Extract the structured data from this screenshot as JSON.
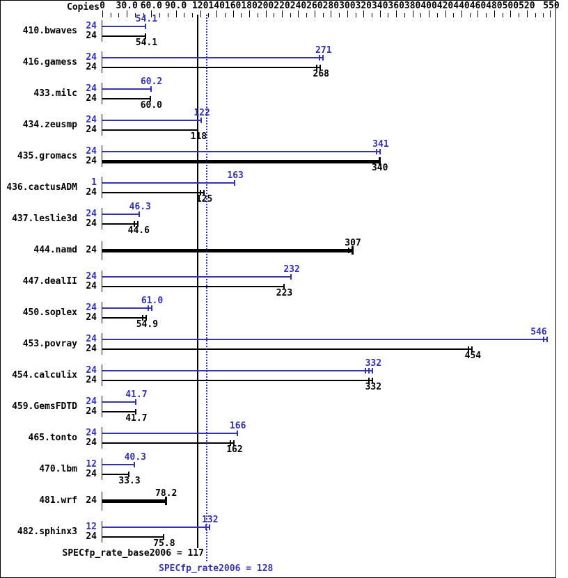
{
  "header": {
    "copies_label": "Copies"
  },
  "colors": {
    "peak": "#3232b2",
    "base": "#000000",
    "background": "#ffffff"
  },
  "chart_data": {
    "type": "bar",
    "orientation": "horizontal",
    "xlim": [
      0,
      550
    ],
    "grid": false,
    "axis_ticks": [
      {
        "value": 0,
        "text": "0"
      },
      {
        "value": 30,
        "text": "30.0"
      },
      {
        "value": 60,
        "text": "60.0"
      },
      {
        "value": 90,
        "text": "90.0"
      },
      {
        "value": 120,
        "text": "120"
      },
      {
        "value": 140,
        "text": "140"
      },
      {
        "value": 160,
        "text": "160"
      },
      {
        "value": 180,
        "text": "180"
      },
      {
        "value": 200,
        "text": "200"
      },
      {
        "value": 220,
        "text": "220"
      },
      {
        "value": 240,
        "text": "240"
      },
      {
        "value": 260,
        "text": "260"
      },
      {
        "value": 280,
        "text": "280"
      },
      {
        "value": 300,
        "text": "300"
      },
      {
        "value": 320,
        "text": "320"
      },
      {
        "value": 340,
        "text": "340"
      },
      {
        "value": 360,
        "text": "360"
      },
      {
        "value": 380,
        "text": "380"
      },
      {
        "value": 400,
        "text": "400"
      },
      {
        "value": 420,
        "text": "420"
      },
      {
        "value": 440,
        "text": "440"
      },
      {
        "value": 460,
        "text": "460"
      },
      {
        "value": 480,
        "text": "480"
      },
      {
        "value": 500,
        "text": "500"
      },
      {
        "value": 520,
        "text": "520"
      },
      {
        "value": 550,
        "text": "550"
      }
    ],
    "minor_tick_step": 10,
    "reference_lines": [
      {
        "name": "base-mean",
        "value": 117,
        "style": "solid",
        "color": "#000000",
        "label": "SPECfp_rate_base2006 = 117"
      },
      {
        "name": "peak-mean",
        "value": 128,
        "style": "dotted",
        "color": "#3232b2",
        "label": "SPECfp_rate2006 = 128"
      }
    ],
    "benchmarks": [
      {
        "name": "410.bwaves",
        "bars": [
          {
            "series": "peak",
            "copies": "24",
            "value": 54.1,
            "label": "54.1",
            "marks": 1
          },
          {
            "series": "base",
            "copies": "24",
            "value": 54.1,
            "label": "54.1",
            "marks": 1
          }
        ]
      },
      {
        "name": "416.gamess",
        "bars": [
          {
            "series": "peak",
            "copies": "24",
            "value": 271,
            "label": "271",
            "marks": 2
          },
          {
            "series": "base",
            "copies": "24",
            "value": 268,
            "label": "268",
            "marks": 2
          }
        ]
      },
      {
        "name": "433.milc",
        "bars": [
          {
            "series": "peak",
            "copies": "24",
            "value": 60.2,
            "label": "60.2",
            "marks": 1
          },
          {
            "series": "base",
            "copies": "24",
            "value": 60.0,
            "label": "60.0",
            "marks": 1
          }
        ]
      },
      {
        "name": "434.zeusmp",
        "bars": [
          {
            "series": "peak",
            "copies": "24",
            "value": 122,
            "label": "122",
            "marks": 1
          },
          {
            "series": "base",
            "copies": "24",
            "value": 118,
            "label": "118",
            "marks": 1
          }
        ]
      },
      {
        "name": "435.gromacs",
        "bars": [
          {
            "series": "peak",
            "copies": "24",
            "value": 341,
            "label": "341",
            "marks": 2
          },
          {
            "series": "base",
            "copies": "24",
            "value": 340,
            "label": "340",
            "marks": 1,
            "thick": true
          }
        ]
      },
      {
        "name": "436.cactusADM",
        "bars": [
          {
            "series": "peak",
            "copies": "1",
            "value": 163,
            "label": "163",
            "marks": 1
          },
          {
            "series": "base",
            "copies": "24",
            "value": 125,
            "label": "125",
            "marks": 2
          }
        ]
      },
      {
        "name": "437.leslie3d",
        "bars": [
          {
            "series": "peak",
            "copies": "24",
            "value": 46.3,
            "label": "46.3",
            "marks": 1
          },
          {
            "series": "base",
            "copies": "24",
            "value": 44.6,
            "label": "44.6",
            "marks": 2
          }
        ]
      },
      {
        "name": "444.namd",
        "bars": [
          {
            "series": "base",
            "copies": "24",
            "value": 307,
            "label": "307",
            "marks": 2,
            "thick": true
          }
        ]
      },
      {
        "name": "447.dealII",
        "bars": [
          {
            "series": "peak",
            "copies": "24",
            "value": 232,
            "label": "232",
            "marks": 1
          },
          {
            "series": "base",
            "copies": "24",
            "value": 223,
            "label": "223",
            "marks": 1
          }
        ]
      },
      {
        "name": "450.soplex",
        "bars": [
          {
            "series": "peak",
            "copies": "24",
            "value": 61.0,
            "label": "61.0",
            "marks": 2
          },
          {
            "series": "base",
            "copies": "24",
            "value": 54.9,
            "label": "54.9",
            "marks": 2
          }
        ]
      },
      {
        "name": "453.povray",
        "bars": [
          {
            "series": "peak",
            "copies": "24",
            "value": 546,
            "label": "546",
            "marks": 2
          },
          {
            "series": "base",
            "copies": "24",
            "value": 454,
            "label": "454",
            "marks": 2
          }
        ]
      },
      {
        "name": "454.calculix",
        "bars": [
          {
            "series": "peak",
            "copies": "24",
            "value": 332,
            "label": "332",
            "marks": 3
          },
          {
            "series": "base",
            "copies": "24",
            "value": 332,
            "label": "332",
            "marks": 2
          }
        ]
      },
      {
        "name": "459.GemsFDTD",
        "bars": [
          {
            "series": "peak",
            "copies": "24",
            "value": 41.7,
            "label": "41.7",
            "marks": 1
          },
          {
            "series": "base",
            "copies": "24",
            "value": 41.7,
            "label": "41.7",
            "marks": 1
          }
        ]
      },
      {
        "name": "465.tonto",
        "bars": [
          {
            "series": "peak",
            "copies": "24",
            "value": 166,
            "label": "166",
            "marks": 1
          },
          {
            "series": "base",
            "copies": "24",
            "value": 162,
            "label": "162",
            "marks": 2
          }
        ]
      },
      {
        "name": "470.lbm",
        "bars": [
          {
            "series": "peak",
            "copies": "12",
            "value": 40.3,
            "label": "40.3",
            "marks": 1
          },
          {
            "series": "base",
            "copies": "24",
            "value": 33.3,
            "label": "33.3",
            "marks": 1
          }
        ]
      },
      {
        "name": "481.wrf",
        "bars": [
          {
            "series": "base",
            "copies": "24",
            "value": 78.2,
            "label": "78.2",
            "marks": 1,
            "thick": true
          }
        ]
      },
      {
        "name": "482.sphinx3",
        "bars": [
          {
            "series": "peak",
            "copies": "12",
            "value": 132,
            "label": "132",
            "marks": 2
          },
          {
            "series": "base",
            "copies": "24",
            "value": 75.8,
            "label": "75.8",
            "marks": 1
          }
        ]
      }
    ]
  }
}
